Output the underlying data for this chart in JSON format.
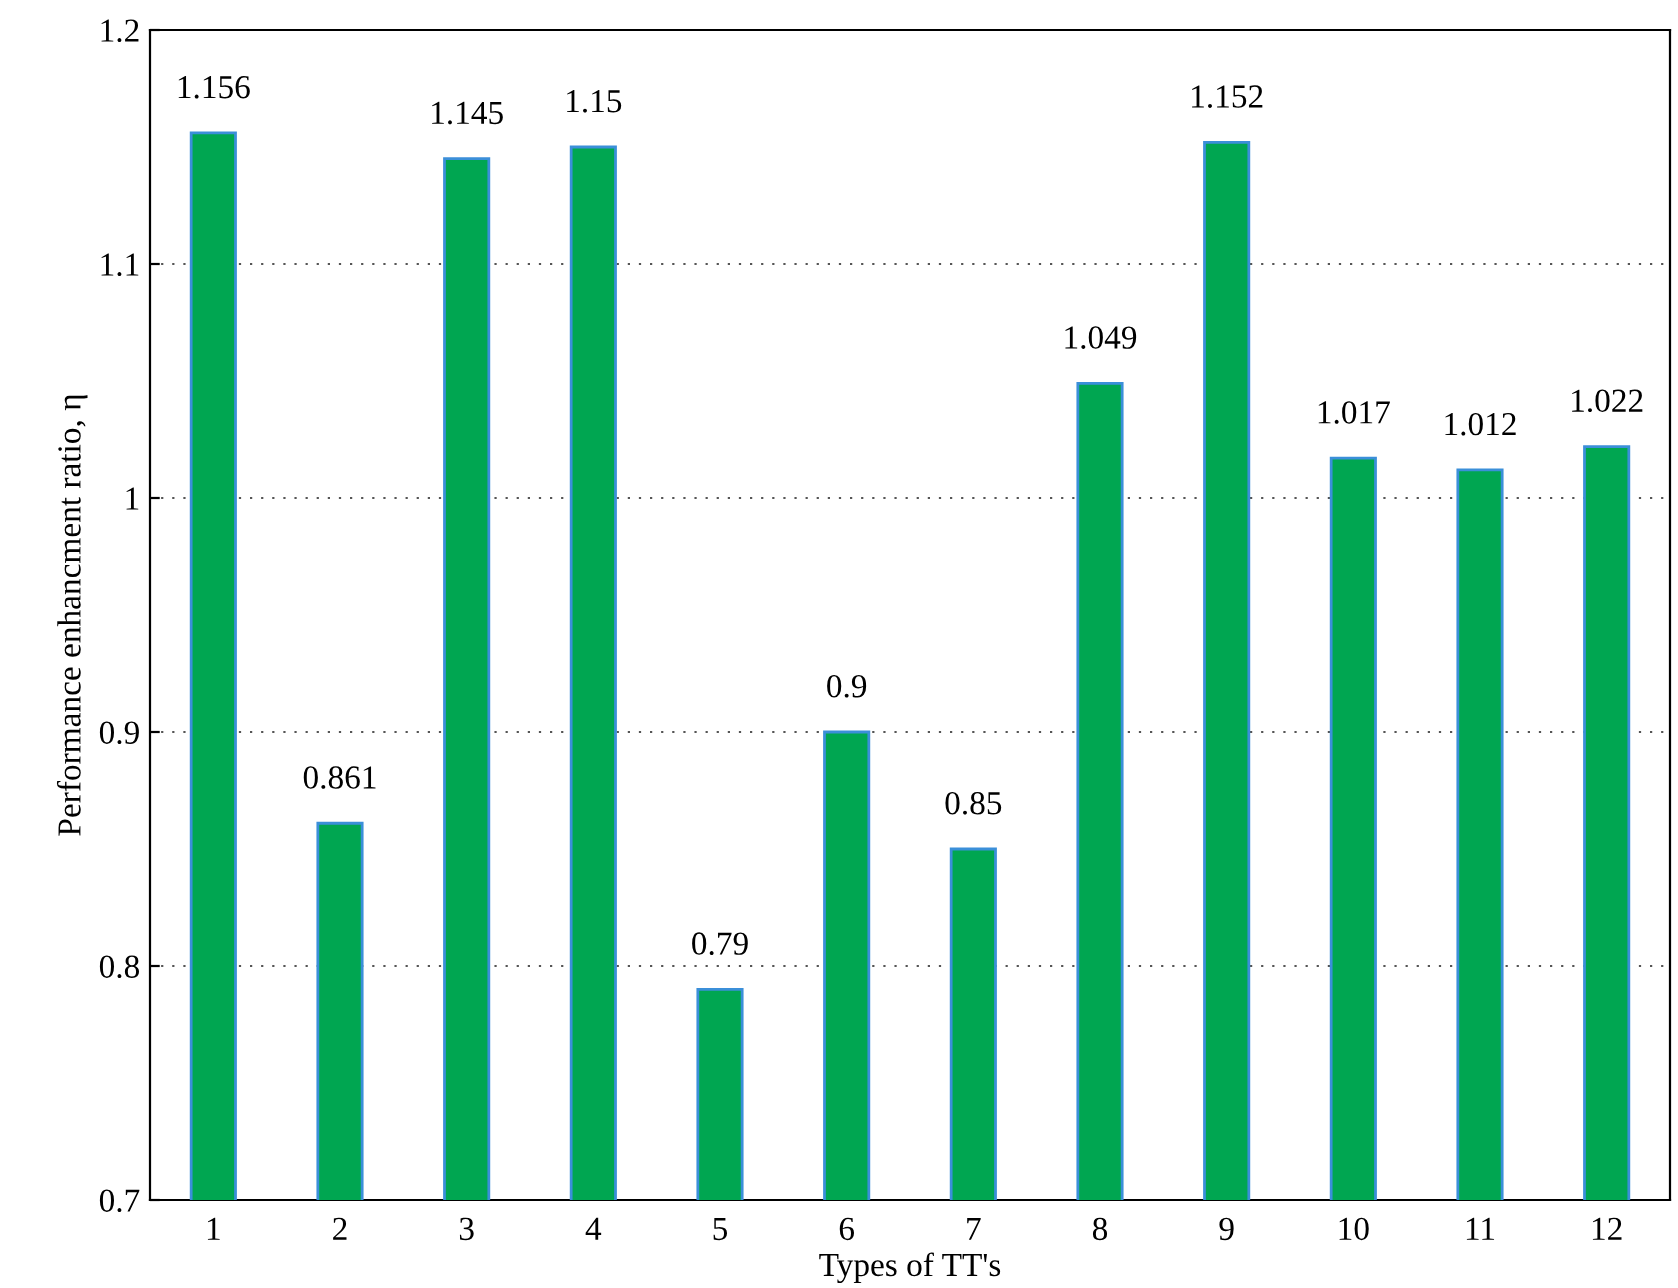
{
  "chart_data": {
    "type": "bar",
    "xlabel": "Types of TT's",
    "ylabel": "Performance enhancment ratio, η",
    "categories": [
      "1",
      "2",
      "3",
      "4",
      "5",
      "6",
      "7",
      "8",
      "9",
      "10",
      "11",
      "12"
    ],
    "values": [
      1.156,
      0.861,
      1.145,
      1.15,
      0.79,
      0.9,
      0.85,
      1.049,
      1.152,
      1.017,
      1.012,
      1.022
    ],
    "color": "#00a651",
    "ylim": [
      0.7,
      1.2
    ],
    "yticks": [
      0.7,
      0.8,
      0.9,
      1,
      1.1,
      1.2
    ],
    "grid": "y",
    "data_labels": true
  }
}
